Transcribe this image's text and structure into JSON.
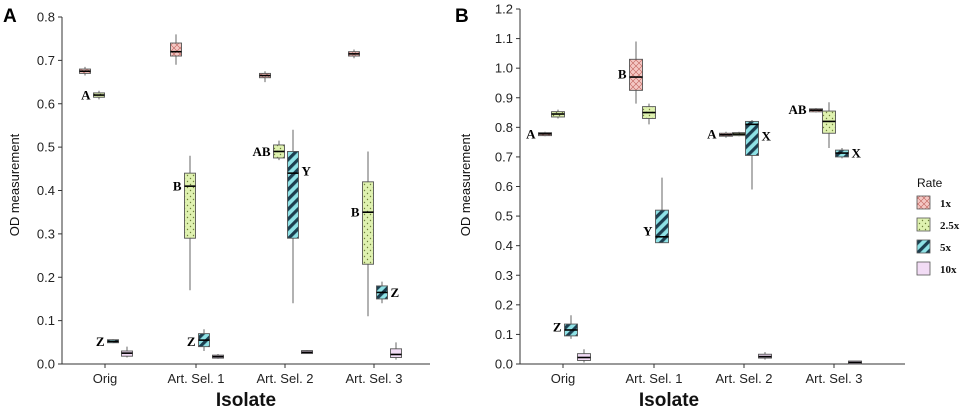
{
  "legend": {
    "title": "Rate",
    "items": [
      {
        "label": "1x",
        "color": "#f4c7c3",
        "pattern": "crosshatch"
      },
      {
        "label": "2.5x",
        "color": "#dff2b0",
        "pattern": "dots"
      },
      {
        "label": "5x",
        "color": "#8fe2e6",
        "pattern": "diagonal"
      },
      {
        "label": "10x",
        "color": "#f2dcf5",
        "pattern": "plain"
      }
    ]
  },
  "chart_data": [
    {
      "type": "boxplot",
      "panel_label": "A",
      "xlabel": "Isolate",
      "ylabel": "OD measurement",
      "ylim": [
        0,
        0.8
      ],
      "yticks": [
        0.0,
        0.1,
        0.2,
        0.3,
        0.4,
        0.5,
        0.6,
        0.7,
        0.8
      ],
      "ytick_labels": [
        "0.0",
        "0.1",
        "0.2",
        "0.3",
        "0.4",
        "0.5",
        "0.6",
        "0.7",
        "0.8"
      ],
      "categories": [
        "Orig",
        "Art. Sel. 1",
        "Art. Sel. 2",
        "Art. Sel. 3"
      ],
      "series": [
        {
          "name": "1x",
          "boxes": [
            {
              "min": 0.665,
              "q1": 0.67,
              "median": 0.675,
              "q3": 0.68,
              "max": 0.685
            },
            {
              "min": 0.69,
              "q1": 0.71,
              "median": 0.72,
              "q3": 0.74,
              "max": 0.76
            },
            {
              "min": 0.65,
              "q1": 0.66,
              "median": 0.665,
              "q3": 0.67,
              "max": 0.675
            },
            {
              "min": 0.705,
              "q1": 0.71,
              "median": 0.715,
              "q3": 0.72,
              "max": 0.725
            }
          ]
        },
        {
          "name": "2.5x",
          "boxes": [
            {
              "min": 0.61,
              "q1": 0.615,
              "median": 0.62,
              "q3": 0.625,
              "max": 0.63
            },
            {
              "min": 0.17,
              "q1": 0.29,
              "median": 0.41,
              "q3": 0.44,
              "max": 0.48
            },
            {
              "min": 0.47,
              "q1": 0.475,
              "median": 0.49,
              "q3": 0.505,
              "max": 0.515
            },
            {
              "min": 0.11,
              "q1": 0.23,
              "median": 0.35,
              "q3": 0.42,
              "max": 0.49
            }
          ]
        },
        {
          "name": "5x",
          "boxes": [
            {
              "min": 0.048,
              "q1": 0.05,
              "median": 0.052,
              "q3": 0.055,
              "max": 0.057
            },
            {
              "min": 0.03,
              "q1": 0.04,
              "median": 0.055,
              "q3": 0.07,
              "max": 0.08
            },
            {
              "min": 0.14,
              "q1": 0.29,
              "median": 0.44,
              "q3": 0.49,
              "max": 0.54
            },
            {
              "min": 0.14,
              "q1": 0.15,
              "median": 0.165,
              "q3": 0.18,
              "max": 0.19
            }
          ]
        },
        {
          "name": "10x",
          "boxes": [
            {
              "min": 0.015,
              "q1": 0.018,
              "median": 0.025,
              "q3": 0.03,
              "max": 0.04
            },
            {
              "min": 0.012,
              "q1": 0.014,
              "median": 0.017,
              "q3": 0.02,
              "max": 0.023
            },
            {
              "min": 0.024,
              "q1": 0.025,
              "median": 0.027,
              "q3": 0.03,
              "max": 0.032
            },
            {
              "min": 0.01,
              "q1": 0.015,
              "median": 0.022,
              "q3": 0.035,
              "max": 0.05
            }
          ]
        }
      ],
      "annotations": [
        {
          "text": "A",
          "category": 0,
          "series": 1,
          "side": "left",
          "y": 0.62
        },
        {
          "text": "Z",
          "category": 0,
          "series": 2,
          "side": "left",
          "y": 0.052
        },
        {
          "text": "B",
          "category": 1,
          "series": 1,
          "side": "left",
          "y": 0.41
        },
        {
          "text": "Z",
          "category": 1,
          "series": 2,
          "side": "left",
          "y": 0.052
        },
        {
          "text": "AB",
          "category": 2,
          "series": 1,
          "side": "left",
          "y": 0.49
        },
        {
          "text": "Y",
          "category": 2,
          "series": 2,
          "side": "right",
          "y": 0.445
        },
        {
          "text": "B",
          "category": 3,
          "series": 1,
          "side": "left",
          "y": 0.35
        },
        {
          "text": "Z",
          "category": 3,
          "series": 2,
          "side": "right",
          "y": 0.165
        }
      ]
    },
    {
      "type": "boxplot",
      "panel_label": "B",
      "xlabel": "Isolate",
      "ylabel": "OD measurement",
      "ylim": [
        0,
        1.2
      ],
      "yticks": [
        0.0,
        0.1,
        0.2,
        0.3,
        0.4,
        0.5,
        0.6,
        0.7,
        0.8,
        0.9,
        1.0,
        1.1,
        1.2
      ],
      "ytick_labels": [
        "0.0",
        "0.1",
        "0.2",
        "0.3",
        "0.4",
        "0.5",
        "0.6",
        "0.7",
        "0.8",
        "0.9",
        "1.0",
        "1.1",
        "1.2"
      ],
      "categories": [
        "Orig",
        "Art. Sel. 1",
        "Art. Sel. 2",
        "Art. Sel. 3"
      ],
      "series": [
        {
          "name": "1x",
          "boxes": [
            {
              "min": 0.77,
              "q1": 0.772,
              "median": 0.778,
              "q3": 0.782,
              "max": 0.785
            },
            {
              "min": 0.88,
              "q1": 0.925,
              "median": 0.97,
              "q3": 1.03,
              "max": 1.09
            },
            {
              "min": 0.765,
              "q1": 0.77,
              "median": 0.775,
              "q3": 0.78,
              "max": 0.785
            },
            {
              "min": 0.85,
              "q1": 0.853,
              "median": 0.858,
              "q3": 0.862,
              "max": 0.865
            }
          ]
        },
        {
          "name": "2.5x",
          "boxes": [
            {
              "min": 0.83,
              "q1": 0.835,
              "median": 0.845,
              "q3": 0.853,
              "max": 0.86
            },
            {
              "min": 0.81,
              "q1": 0.83,
              "median": 0.85,
              "q3": 0.87,
              "max": 0.88
            },
            {
              "min": 0.77,
              "q1": 0.772,
              "median": 0.777,
              "q3": 0.782,
              "max": 0.785
            },
            {
              "min": 0.73,
              "q1": 0.78,
              "median": 0.82,
              "q3": 0.855,
              "max": 0.885
            }
          ]
        },
        {
          "name": "5x",
          "boxes": [
            {
              "min": 0.085,
              "q1": 0.095,
              "median": 0.115,
              "q3": 0.135,
              "max": 0.165
            },
            {
              "min": 0.41,
              "q1": 0.41,
              "median": 0.43,
              "q3": 0.52,
              "max": 0.63
            },
            {
              "min": 0.59,
              "q1": 0.705,
              "median": 0.81,
              "q3": 0.82,
              "max": 0.825
            },
            {
              "min": 0.695,
              "q1": 0.7,
              "median": 0.713,
              "q3": 0.723,
              "max": 0.73
            }
          ]
        },
        {
          "name": "10x",
          "boxes": [
            {
              "min": 0.005,
              "q1": 0.012,
              "median": 0.022,
              "q3": 0.035,
              "max": 0.05
            },
            {
              "min": 0.0,
              "q1": 0.0,
              "median": 0.0,
              "q3": 0.0,
              "max": 0.0
            },
            {
              "min": 0.015,
              "q1": 0.02,
              "median": 0.025,
              "q3": 0.033,
              "max": 0.04
            },
            {
              "min": 0.002,
              "q1": 0.003,
              "median": 0.005,
              "q3": 0.007,
              "max": 0.008
            }
          ]
        }
      ],
      "hidden": [
        {
          "category": 1,
          "series": 3
        }
      ],
      "annotations": [
        {
          "text": "A",
          "category": 0,
          "series": 0,
          "side": "left",
          "y": 0.778
        },
        {
          "text": "Z",
          "category": 0,
          "series": 2,
          "side": "left",
          "y": 0.125
        },
        {
          "text": "B",
          "category": 1,
          "series": 0,
          "side": "left",
          "y": 0.98
        },
        {
          "text": "Y",
          "category": 1,
          "series": 2,
          "side": "left",
          "y": 0.45
        },
        {
          "text": "A",
          "category": 2,
          "series": 0,
          "side": "left",
          "y": 0.778
        },
        {
          "text": "X",
          "category": 2,
          "series": 2,
          "side": "right",
          "y": 0.77
        },
        {
          "text": "AB",
          "category": 3,
          "series": 0,
          "side": "left",
          "y": 0.86
        },
        {
          "text": "X",
          "category": 3,
          "series": 2,
          "side": "right",
          "y": 0.713
        }
      ]
    }
  ]
}
